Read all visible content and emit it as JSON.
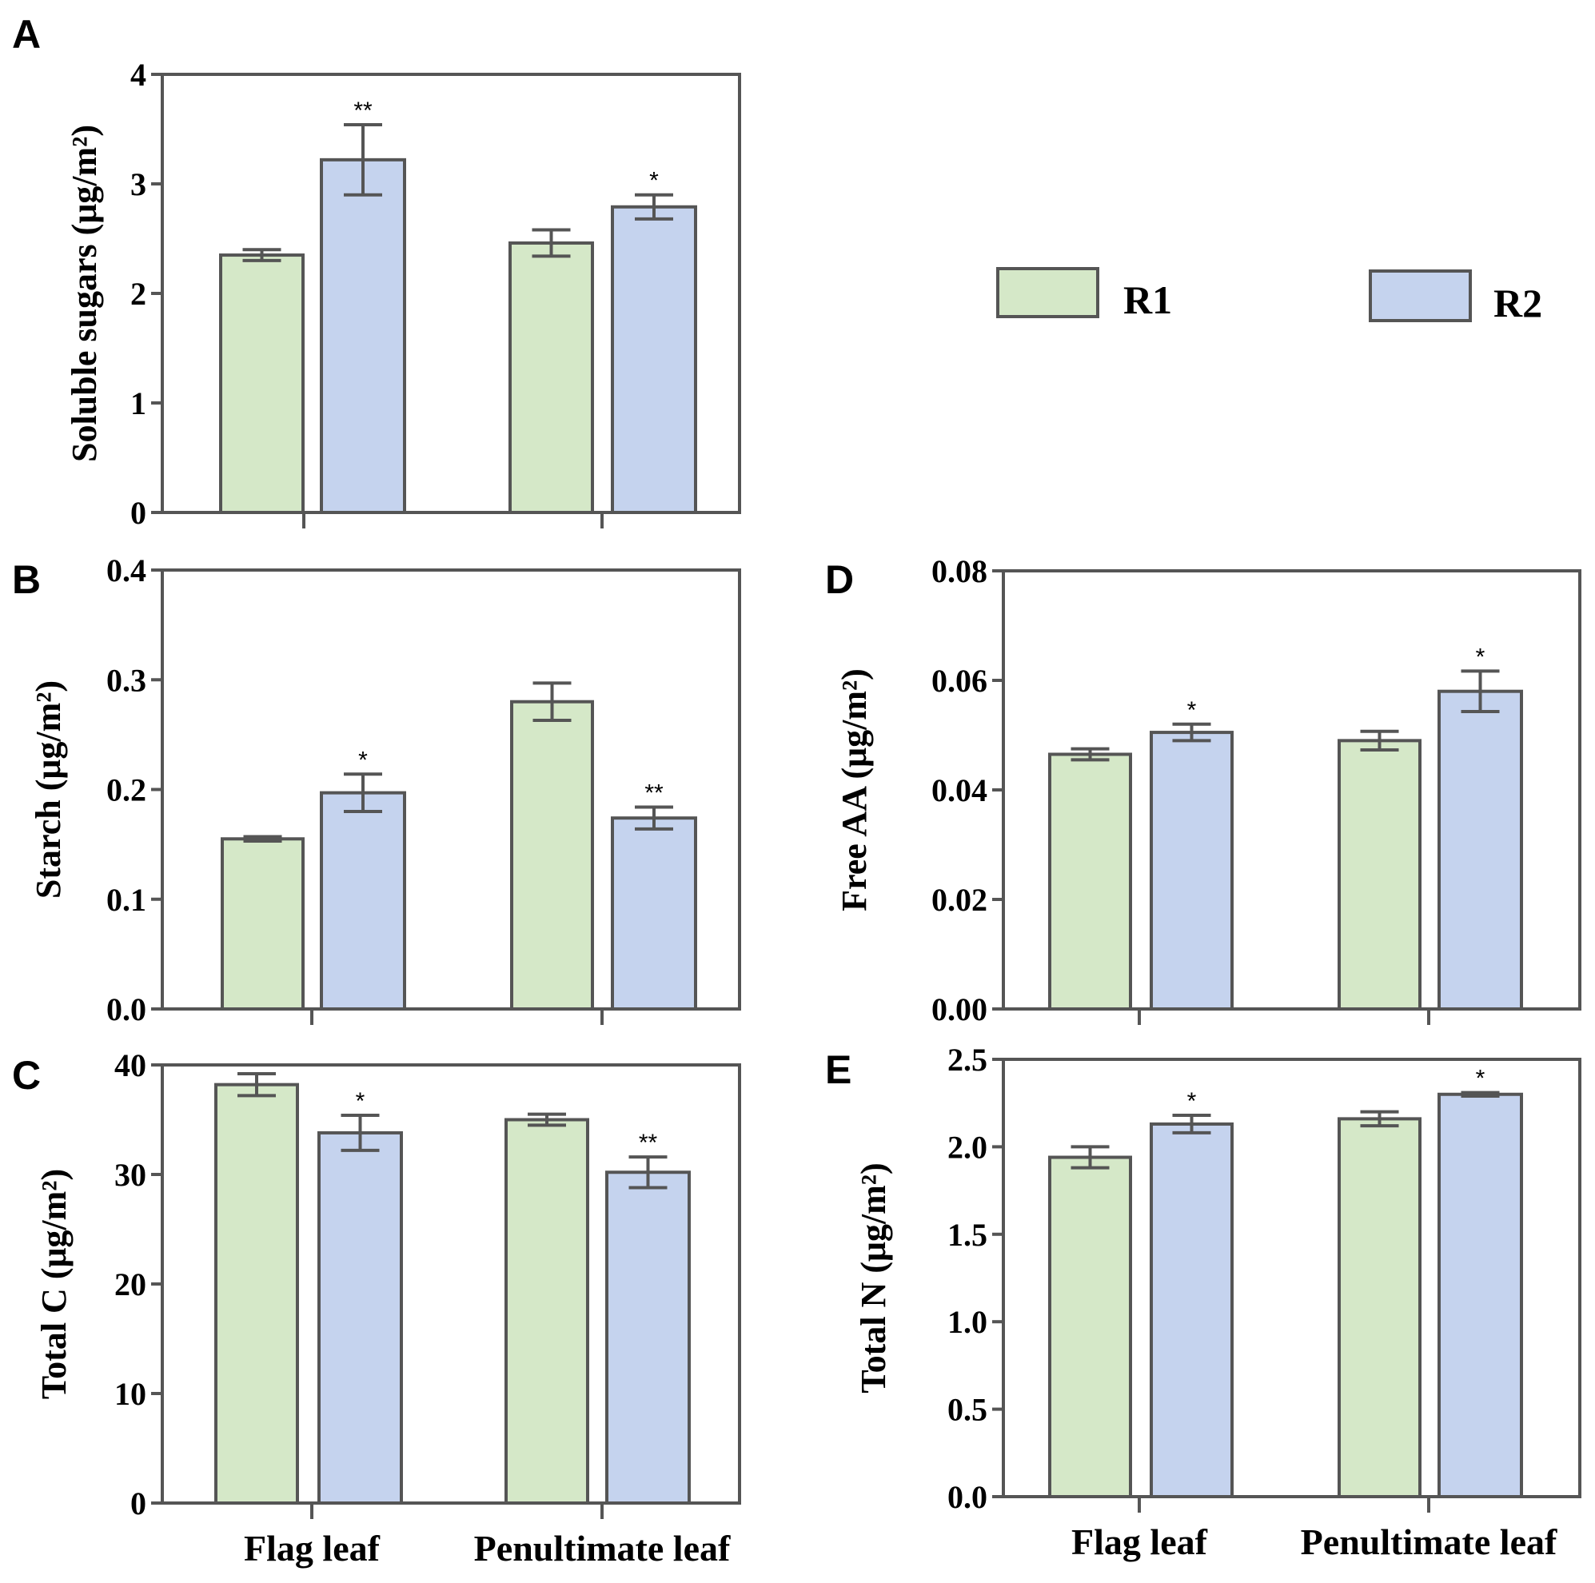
{
  "legend": {
    "items": [
      {
        "label": "R1",
        "color": "#d5e8c8"
      },
      {
        "label": "R2",
        "color": "#c5d3ee"
      }
    ]
  },
  "colors": {
    "axis": "#555555",
    "r1": "#d5e8c8",
    "r2": "#c5d3ee"
  },
  "chart_data": [
    {
      "panel": "A",
      "type": "bar",
      "categories": [
        "Flag leaf",
        "Penultimate leaf"
      ],
      "ylabel": "Soluble sugars (μg/m²)",
      "ylim": [
        0,
        4
      ],
      "yticks": [
        "0",
        "1",
        "2",
        "3",
        "4"
      ],
      "show_category_labels": false,
      "series": [
        {
          "name": "R1",
          "values": [
            2.35,
            2.46
          ],
          "errors": [
            0.05,
            0.12
          ],
          "sig": [
            "",
            ""
          ]
        },
        {
          "name": "R2",
          "values": [
            3.22,
            2.79
          ],
          "errors": [
            0.32,
            0.11
          ],
          "sig": [
            "**",
            "*"
          ]
        }
      ]
    },
    {
      "panel": "B",
      "type": "bar",
      "categories": [
        "Flag leaf",
        "Penultimate leaf"
      ],
      "ylabel": "Starch (μg/m²)",
      "ylim": [
        0,
        0.4
      ],
      "yticks": [
        "0.0",
        "0.1",
        "0.2",
        "0.3",
        "0.4"
      ],
      "show_category_labels": false,
      "series": [
        {
          "name": "R1",
          "values": [
            0.155,
            0.28
          ],
          "errors": [
            0.002,
            0.017
          ],
          "sig": [
            "",
            ""
          ]
        },
        {
          "name": "R2",
          "values": [
            0.197,
            0.174
          ],
          "errors": [
            0.017,
            0.01
          ],
          "sig": [
            "*",
            "**"
          ]
        }
      ]
    },
    {
      "panel": "C",
      "type": "bar",
      "categories": [
        "Flag leaf",
        "Penultimate leaf"
      ],
      "ylabel": "Total C (μg/m²)",
      "ylim": [
        0,
        40
      ],
      "yticks": [
        "0",
        "10",
        "20",
        "30",
        "40"
      ],
      "show_category_labels": true,
      "series": [
        {
          "name": "R1",
          "values": [
            38.2,
            35.0
          ],
          "errors": [
            1.0,
            0.5
          ],
          "sig": [
            "",
            ""
          ]
        },
        {
          "name": "R2",
          "values": [
            33.8,
            30.2
          ],
          "errors": [
            1.6,
            1.4
          ],
          "sig": [
            "*",
            "**"
          ]
        }
      ]
    },
    {
      "panel": "D",
      "type": "bar",
      "categories": [
        "Flag leaf",
        "Penultimate leaf"
      ],
      "ylabel": "Free AA (μg/m²)",
      "ylim": [
        0,
        0.08
      ],
      "yticks": [
        "0.00",
        "0.02",
        "0.04",
        "0.06",
        "0.08"
      ],
      "show_category_labels": false,
      "series": [
        {
          "name": "R1",
          "values": [
            0.0465,
            0.049
          ],
          "errors": [
            0.001,
            0.0017
          ],
          "sig": [
            "",
            ""
          ]
        },
        {
          "name": "R2",
          "values": [
            0.0505,
            0.058
          ],
          "errors": [
            0.0015,
            0.0037
          ],
          "sig": [
            "*",
            "*"
          ]
        }
      ]
    },
    {
      "panel": "E",
      "type": "bar",
      "categories": [
        "Flag leaf",
        "Penultimate leaf"
      ],
      "ylabel": "Total N (μg/m²)",
      "ylim": [
        0,
        2.5
      ],
      "yticks": [
        "0.0",
        "0.5",
        "1.0",
        "1.5",
        "2.0",
        "2.5"
      ],
      "show_category_labels": true,
      "series": [
        {
          "name": "R1",
          "values": [
            1.94,
            2.16
          ],
          "errors": [
            0.06,
            0.04
          ],
          "sig": [
            "",
            ""
          ]
        },
        {
          "name": "R2",
          "values": [
            2.13,
            2.3
          ],
          "errors": [
            0.05,
            0.01
          ],
          "sig": [
            "*",
            "*"
          ]
        }
      ]
    }
  ]
}
